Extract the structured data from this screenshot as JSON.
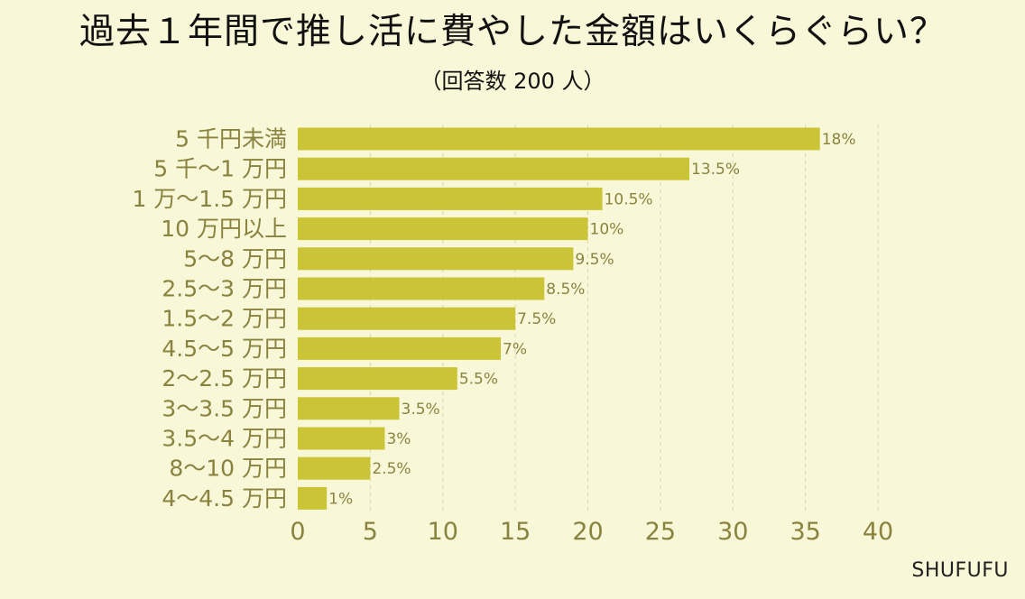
{
  "chart_data": {
    "type": "bar",
    "orientation": "horizontal",
    "title": "過去１年間で推し活に費やした金額はいくらぐらい？",
    "subtitle": "（回答数 200 人）",
    "categories": [
      "5 千円未満",
      "5 千〜1 万円",
      "1 万〜1.5 万円",
      "10 万円以上",
      "5〜8 万円",
      "2.5〜3 万円",
      "1.5〜2 万円",
      "4.5〜5 万円",
      "2〜2.5 万円",
      "3〜3.5 万円",
      "3.5〜4 万円",
      "8〜10 万円",
      "4〜4.5 万円"
    ],
    "values": [
      36,
      27,
      21,
      20,
      19,
      17,
      15,
      14,
      11,
      7,
      6,
      5,
      2
    ],
    "data_labels": [
      "18%",
      "13.5%",
      "10.5%",
      "10%",
      "9.5%",
      "8.5%",
      "7.5%",
      "7%",
      "5.5%",
      "3.5%",
      "3%",
      "2.5%",
      "1%"
    ],
    "xlim": [
      0,
      40
    ],
    "xticks": [
      "0",
      "5",
      "10",
      "15",
      "20",
      "25",
      "30",
      "35",
      "40"
    ],
    "grid": true,
    "bar_color": "#cbc437",
    "label_color": "#8a8340",
    "background": "#f8f7d7"
  },
  "brand": "SHUFUFU"
}
